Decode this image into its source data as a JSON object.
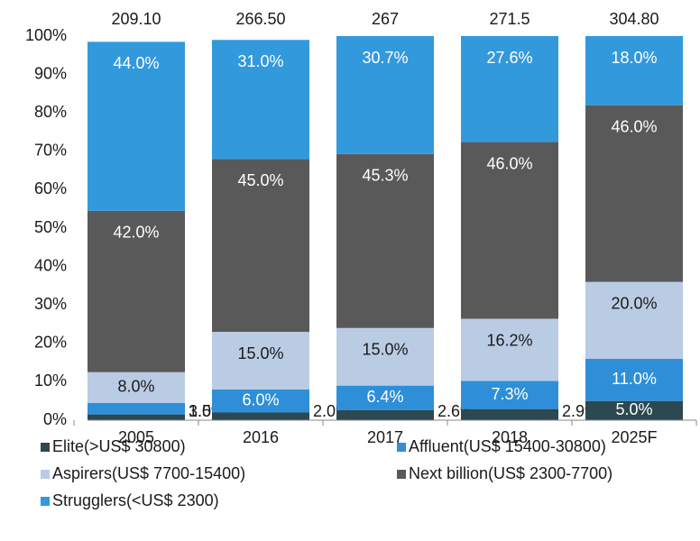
{
  "chart_data": {
    "type": "stacked_bar",
    "categories": [
      "2005",
      "2016",
      "2017",
      "2018",
      "2025F"
    ],
    "totals": {
      "values": [
        209.1,
        266.5,
        267,
        271.5,
        304.8
      ],
      "value_labels": [
        "209.10",
        "266.50",
        "267",
        "271.5",
        "304.80"
      ]
    },
    "series": [
      {
        "name": "Elite(>US$ 30800)",
        "color": "#2c4850",
        "values": [
          1.5,
          2.0,
          2.6,
          2.9,
          5.0
        ],
        "value_labels": [
          "1.5%",
          "2.0%",
          "2.6%",
          "2.9%",
          "5.0%"
        ]
      },
      {
        "name": "Affluent(US$ 15400-30800)",
        "color": "#2e8fd8",
        "values": [
          3.0,
          6.0,
          6.4,
          7.3,
          11.0
        ],
        "value_labels": [
          "3.0%",
          "6.0%",
          "6.4%",
          "7.3%",
          "11.0%"
        ]
      },
      {
        "name": "Aspirers(US$ 7700-15400)",
        "color": "#b9cce4",
        "values": [
          8.0,
          15.0,
          15.0,
          16.2,
          20.0
        ],
        "value_labels": [
          "8.0%",
          "15.0%",
          "15.0%",
          "16.2%",
          "20.0%"
        ]
      },
      {
        "name": "Next billion(US$ 2300-7700)",
        "color": "#595959",
        "values": [
          42.0,
          45.0,
          45.3,
          46.0,
          46.0
        ],
        "value_labels": [
          "42.0%",
          "45.0%",
          "45.3%",
          "46.0%",
          "46.0%"
        ]
      },
      {
        "name": "Strugglers(<US$ 2300)",
        "color": "#3399dd",
        "values": [
          44.0,
          31.0,
          30.7,
          27.6,
          18.0
        ],
        "value_labels": [
          "44.0%",
          "31.0%",
          "30.7%",
          "27.6%",
          "18.0%"
        ]
      }
    ],
    "ylim": [
      0,
      100
    ],
    "yticks": [
      {
        "value": 0,
        "label": "0%"
      },
      {
        "value": 10,
        "label": "10%"
      },
      {
        "value": 20,
        "label": "20%"
      },
      {
        "value": 30,
        "label": "30%"
      },
      {
        "value": 40,
        "label": "40%"
      },
      {
        "value": 50,
        "label": "50%"
      },
      {
        "value": 60,
        "label": "60%"
      },
      {
        "value": 70,
        "label": "70%"
      },
      {
        "value": 80,
        "label": "80%"
      },
      {
        "value": 90,
        "label": "90%"
      },
      {
        "value": 100,
        "label": "100%"
      }
    ],
    "grid": false
  }
}
